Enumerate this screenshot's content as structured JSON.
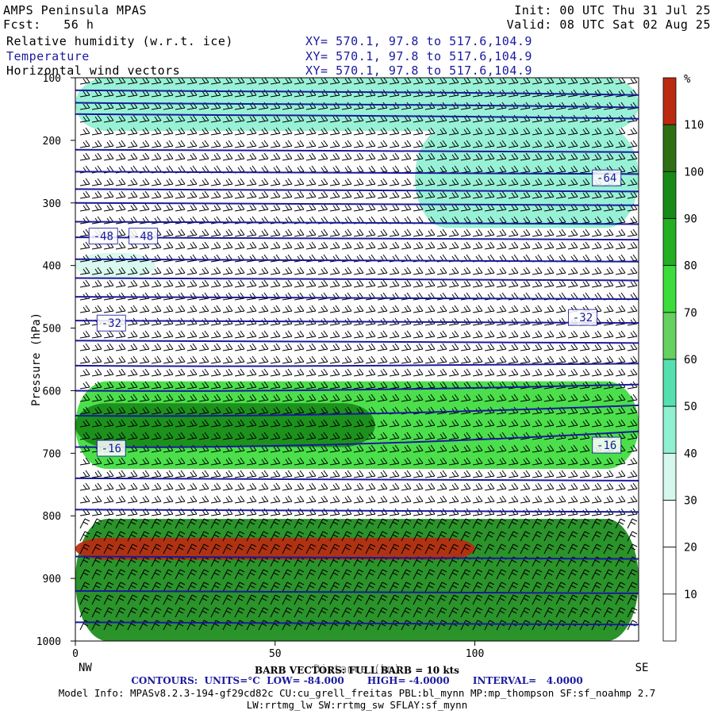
{
  "header": {
    "title": "AMPS Peninsula MPAS",
    "fcst": "Fcst:   56 h",
    "init": "Init: 00 UTC Thu 31 Jul 25",
    "valid": "Valid: 08 UTC Sat 02 Aug 25",
    "fields": [
      {
        "label": "Relative humidity (w.r.t. ice)",
        "xy": "XY= 570.1, 97.8 to 517.6,104.9",
        "color": "#000000"
      },
      {
        "label": "Temperature",
        "xy": "XY= 570.1, 97.8 to 517.6,104.9",
        "color": "#1a1a9e"
      },
      {
        "label": "Horizontal wind vectors",
        "xy": "XY= 570.1, 97.8 to 517.6,104.9",
        "color": "#000000"
      }
    ]
  },
  "footer": {
    "barb_note": "BARB VECTORS: FULL BARB = 10 kts",
    "overlay_xlabel": "Distance (km)",
    "contours": "CONTOURS:  UNITS=°C  LOW= -84.000       HIGH= -4.0000       INTERVAL=   4.0000",
    "model_info": "Model Info: MPASv8.2.3-194-gf29cd82c CU:cu_grell_freitas PBL:bl_mynn MP:mp_thompson SF:sf_noahmp 2.7",
    "model_info2": "LW:rrtmg_lw SW:rrtmg_sw SFLAY:sf_mynn"
  },
  "chart_data": {
    "type": "heatmap",
    "title": "Relative humidity (w.r.t. ice), Temperature, Horizontal wind vectors",
    "xlabel": "",
    "ylabel": "Pressure (hPa)",
    "x_end_labels": {
      "left": "NW",
      "right": "SE"
    },
    "xlim": [
      0,
      141
    ],
    "ylim": [
      1000,
      100
    ],
    "xticks": [
      0,
      50,
      100
    ],
    "yticks": [
      100,
      200,
      300,
      400,
      500,
      600,
      700,
      800,
      900,
      1000
    ],
    "colorbar": {
      "unit": "%",
      "levels": [
        10,
        20,
        30,
        40,
        50,
        60,
        70,
        80,
        90,
        100,
        110
      ],
      "colors": [
        "#ffffff",
        "#ffffff",
        "#ffffff",
        "#d6f7ee",
        "#8ff0d2",
        "#55e0b0",
        "#66d060",
        "#3cdc3c",
        "#22b022",
        "#188a18",
        "#2e6f14",
        "#bb2a10"
      ]
    },
    "humidity_bands": [
      {
        "p_top": 100,
        "p_bottom": 185,
        "x_from": 0,
        "x_to": 141,
        "rh": 45
      },
      {
        "p_top": 180,
        "p_bottom": 340,
        "x_from": 85,
        "x_to": 141,
        "rh": 45
      },
      {
        "p_top": 380,
        "p_bottom": 420,
        "x_from": 0,
        "x_to": 20,
        "rh": 35
      },
      {
        "p_top": 585,
        "p_bottom": 725,
        "x_from": 0,
        "x_to": 141,
        "rh": 75
      },
      {
        "p_top": 620,
        "p_bottom": 690,
        "x_from": 0,
        "x_to": 75,
        "rh": 90
      },
      {
        "p_top": 805,
        "p_bottom": 1000,
        "x_from": 0,
        "x_to": 141,
        "rh": 95
      },
      {
        "p_top": 835,
        "p_bottom": 870,
        "x_from": 0,
        "x_to": 100,
        "rh": 112
      }
    ],
    "temperature_contour_labels": [
      {
        "text": "-64",
        "x": 133,
        "p": 260
      },
      {
        "text": "-48",
        "x": 7,
        "p": 353
      },
      {
        "text": "-48",
        "x": 17,
        "p": 353
      },
      {
        "text": "-32",
        "x": 9,
        "p": 492
      },
      {
        "text": "-32",
        "x": 127,
        "p": 483
      },
      {
        "text": "-16",
        "x": 9,
        "p": 692
      },
      {
        "text": "-16",
        "x": 133,
        "p": 687
      }
    ],
    "temperature_contours_p": [
      120,
      140,
      158,
      215,
      250,
      278,
      300,
      330,
      355,
      390,
      420,
      450,
      488,
      520,
      560,
      600,
      640,
      690,
      740,
      790,
      865,
      920,
      970
    ]
  }
}
